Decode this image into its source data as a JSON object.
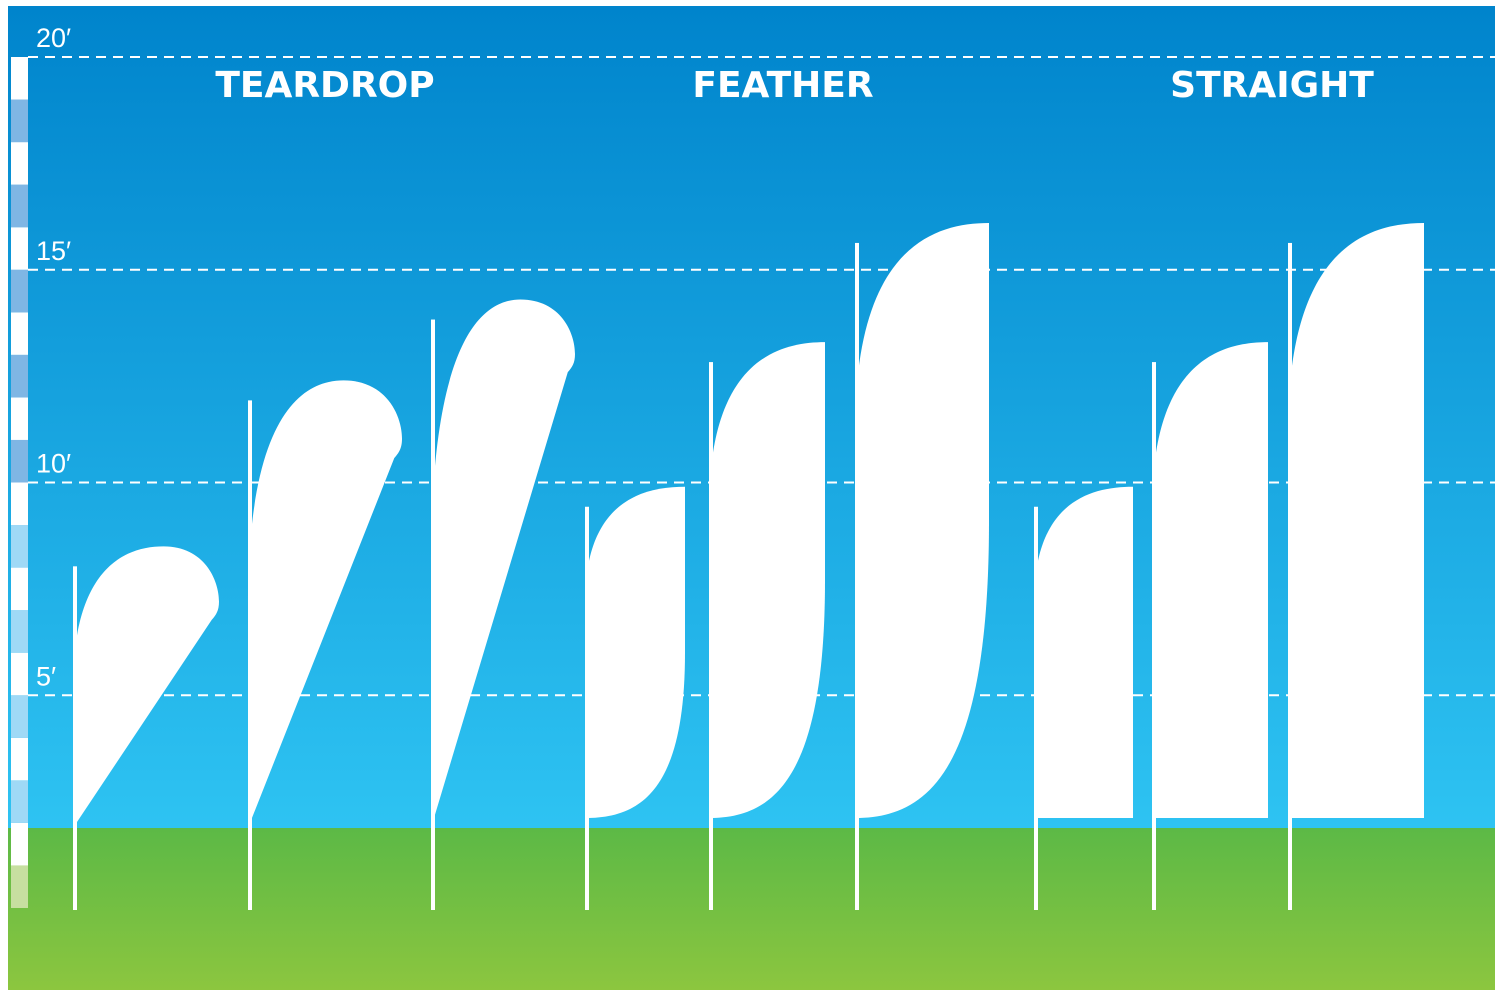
{
  "colors": {
    "sky_top": "#0084cc",
    "sky_bottom": "#2ec3f2",
    "grass_top": "#5cb946",
    "grass_bottom": "#8cc63f",
    "flag": "#ffffff",
    "ruler_dark": "#7fb6e4",
    "ruler_light": "#9fd9f6"
  },
  "height_levels": [
    {
      "label": "20′",
      "feet": 20
    },
    {
      "label": "15′",
      "feet": 15
    },
    {
      "label": "10′",
      "feet": 10
    },
    {
      "label": "5′",
      "feet": 5
    }
  ],
  "categories": [
    {
      "label": "TEARDROP",
      "shape": "teardrop",
      "flag_heights_ft": [
        8.5,
        12.4,
        14.3
      ]
    },
    {
      "label": "FEATHER",
      "shape": "feather",
      "flag_heights_ft": [
        9.9,
        13.3,
        16.1
      ]
    },
    {
      "label": "STRAIGHT",
      "shape": "straight",
      "flag_heights_ft": [
        9.9,
        13.3,
        16.1
      ]
    }
  ]
}
